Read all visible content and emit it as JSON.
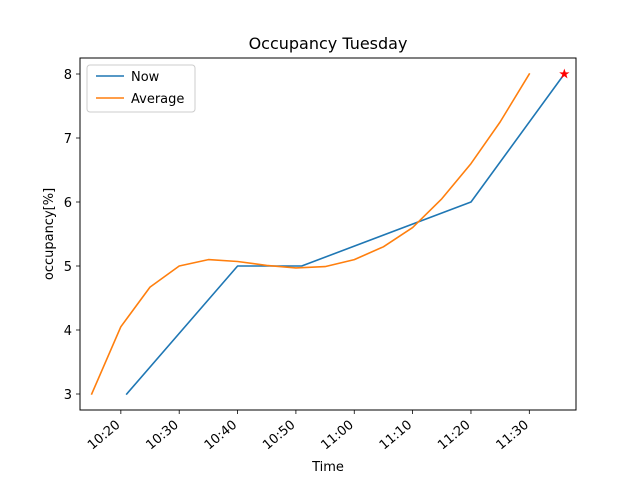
{
  "chart_data": {
    "type": "line",
    "title": "Occupancy Tuesday",
    "xlabel": "Time",
    "ylabel": "occupancy[%]",
    "xlim": [
      "10:13",
      "11:38"
    ],
    "ylim": [
      2.75,
      8.25
    ],
    "x_ticks": [
      "10:20",
      "10:30",
      "10:40",
      "10:50",
      "11:00",
      "11:10",
      "11:20",
      "11:30"
    ],
    "y_ticks": [
      3,
      4,
      5,
      6,
      7,
      8
    ],
    "legend_position": "top-left",
    "series": [
      {
        "name": "Now",
        "color": "#1f77b4",
        "points": [
          {
            "x": "10:21",
            "y": 3
          },
          {
            "x": "10:40",
            "y": 5
          },
          {
            "x": "10:51",
            "y": 5
          },
          {
            "x": "11:20",
            "y": 6
          },
          {
            "x": "11:36",
            "y": 8
          }
        ]
      },
      {
        "name": "Average",
        "color": "#ff7f0e",
        "points": [
          {
            "x": "10:15",
            "y": 3.0
          },
          {
            "x": "10:20",
            "y": 4.05
          },
          {
            "x": "10:25",
            "y": 4.67
          },
          {
            "x": "10:30",
            "y": 5.0
          },
          {
            "x": "10:35",
            "y": 5.1
          },
          {
            "x": "10:40",
            "y": 5.07
          },
          {
            "x": "10:45",
            "y": 5.01
          },
          {
            "x": "10:50",
            "y": 4.97
          },
          {
            "x": "10:55",
            "y": 4.99
          },
          {
            "x": "11:00",
            "y": 5.1
          },
          {
            "x": "11:05",
            "y": 5.3
          },
          {
            "x": "11:10",
            "y": 5.6
          },
          {
            "x": "11:15",
            "y": 6.05
          },
          {
            "x": "11:20",
            "y": 6.6
          },
          {
            "x": "11:25",
            "y": 7.25
          },
          {
            "x": "11:30",
            "y": 8.0
          }
        ]
      }
    ],
    "markers": [
      {
        "x": "11:36",
        "y": 8,
        "symbol": "star",
        "color": "#ff0000"
      }
    ]
  }
}
